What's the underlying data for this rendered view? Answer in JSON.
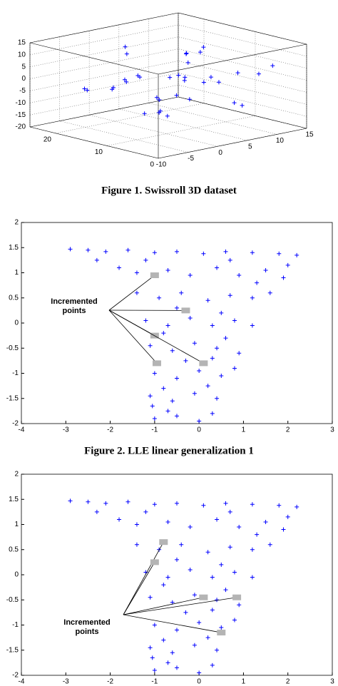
{
  "chart_data": [
    {
      "type": "scatter3d",
      "caption": "Figure 1. Swissroll 3D dataset",
      "color": "#0000ff",
      "xlim": [
        -10,
        15
      ],
      "xticks": [
        -10,
        -5,
        0,
        5,
        10,
        15
      ],
      "ylim": [
        0,
        25
      ],
      "yticks": [
        0,
        10,
        20
      ],
      "zlim": [
        -20,
        15
      ],
      "zticks": [
        -20,
        -15,
        -10,
        -5,
        0,
        5,
        10,
        15
      ],
      "grid": true,
      "x": [
        -8,
        -9,
        -7,
        -4,
        0,
        4,
        8,
        11,
        12,
        11,
        8,
        4,
        -1,
        -5,
        -6,
        -5,
        -2,
        2,
        6,
        8,
        8,
        5,
        1,
        -2,
        -3,
        -1,
        2,
        4,
        3,
        0,
        -9,
        -10,
        13,
        10,
        6
      ],
      "y": [
        5,
        15,
        10,
        3,
        18,
        8,
        12,
        2,
        20,
        14,
        6,
        16,
        10,
        4,
        19,
        12,
        7,
        20,
        3,
        15,
        9,
        1,
        13,
        18,
        2,
        14,
        5,
        11,
        19,
        8,
        1,
        9,
        7,
        18,
        13
      ],
      "z": [
        -5,
        0,
        6,
        10,
        12,
        13,
        11,
        7,
        2,
        -4,
        -9,
        -11,
        -10,
        -7,
        -3,
        3,
        6,
        7,
        6,
        3,
        -2,
        -6,
        -7,
        -4,
        0,
        2,
        3,
        1,
        -2,
        -3,
        -2,
        4,
        0,
        -7,
        9
      ]
    },
    {
      "type": "scatter",
      "caption": "Figure 2. LLE linear generalization 1",
      "color": "#0000ff",
      "xlim": [
        -4,
        3
      ],
      "xticks": [
        -4,
        -3,
        -2,
        -1,
        0,
        1,
        2,
        3
      ],
      "ylim": [
        -2,
        2
      ],
      "yticks": [
        -2,
        -1.5,
        -1,
        -0.5,
        0,
        0.5,
        1,
        1.5,
        2
      ],
      "x": [
        -2.9,
        -2.5,
        -2.1,
        -1.6,
        -1.0,
        -0.5,
        0.1,
        0.6,
        1.2,
        1.8,
        2.2,
        -1.8,
        -1.4,
        -0.7,
        -0.2,
        0.4,
        0.9,
        1.5,
        2.0,
        1.9,
        -1.4,
        -0.9,
        -0.4,
        0.2,
        0.7,
        1.2,
        1.6,
        -1.2,
        -0.7,
        -0.2,
        0.3,
        0.8,
        1.2,
        -1.1,
        -0.6,
        -0.1,
        0.4,
        0.9,
        -1.0,
        -0.5,
        0.0,
        0.5,
        0.8,
        -1.1,
        -0.6,
        -0.1,
        0.4,
        -1.0,
        -0.5,
        0.0,
        0.3,
        -2.3,
        -1.2,
        0.7,
        1.3,
        -0.5,
        0.5,
        -0.8,
        0.6,
        -0.3,
        0.3,
        -0.8,
        0.2,
        -0.7,
        -1.05
      ],
      "y": [
        1.47,
        1.45,
        1.42,
        1.45,
        1.4,
        1.42,
        1.38,
        1.42,
        1.4,
        1.38,
        1.35,
        1.1,
        1.0,
        1.05,
        0.95,
        1.1,
        0.95,
        1.05,
        1.15,
        0.9,
        0.6,
        0.5,
        0.6,
        0.45,
        0.55,
        0.5,
        0.6,
        0.05,
        -0.05,
        0.1,
        -0.05,
        0.05,
        -0.05,
        -0.45,
        -0.55,
        -0.4,
        -0.5,
        -0.6,
        -1.0,
        -1.1,
        -0.95,
        -1.05,
        -0.9,
        -1.45,
        -1.55,
        -1.4,
        -1.5,
        -1.9,
        -1.85,
        -1.95,
        -1.8,
        1.25,
        1.25,
        1.25,
        0.8,
        0.3,
        0.2,
        -0.2,
        -0.3,
        -0.75,
        -0.7,
        -1.3,
        -1.25,
        -1.75,
        -1.65
      ],
      "highlight": {
        "color": "#b4b4b4",
        "x": [
          -1.0,
          -0.3,
          -1.0,
          -0.95,
          0.1
        ],
        "y": [
          0.95,
          0.25,
          -0.25,
          -0.8,
          -0.8
        ]
      },
      "annotation": [
        "Incremented",
        "points"
      ]
    },
    {
      "type": "scatter",
      "color": "#0000ff",
      "xlim": [
        -4,
        3
      ],
      "xticks": [
        -4,
        -3,
        -2,
        -1,
        0,
        1,
        2,
        3
      ],
      "ylim": [
        -2,
        2
      ],
      "yticks": [
        -2,
        -1.5,
        -1,
        -0.5,
        0,
        0.5,
        1,
        1.5,
        2
      ],
      "x": [
        -2.9,
        -2.5,
        -2.1,
        -1.6,
        -1.0,
        -0.5,
        0.1,
        0.6,
        1.2,
        1.8,
        2.2,
        -1.8,
        -1.4,
        -0.7,
        -0.2,
        0.4,
        0.9,
        1.5,
        2.0,
        1.9,
        -1.4,
        -0.9,
        -0.4,
        0.2,
        0.7,
        1.2,
        1.6,
        -1.2,
        -0.7,
        -0.2,
        0.3,
        0.8,
        1.2,
        -1.1,
        -0.6,
        -0.1,
        0.4,
        0.9,
        -1.0,
        -0.5,
        0.0,
        0.5,
        0.8,
        -1.1,
        -0.6,
        -0.1,
        0.4,
        -1.0,
        -0.5,
        0.0,
        0.3,
        -2.3,
        -1.2,
        0.7,
        1.3,
        -0.5,
        0.5,
        -0.8,
        0.6,
        -0.3,
        0.3,
        -0.8,
        0.2,
        -0.7,
        -1.05
      ],
      "y": [
        1.47,
        1.45,
        1.42,
        1.45,
        1.4,
        1.42,
        1.38,
        1.42,
        1.4,
        1.38,
        1.35,
        1.1,
        1.0,
        1.05,
        0.95,
        1.1,
        0.95,
        1.05,
        1.15,
        0.9,
        0.6,
        0.5,
        0.6,
        0.45,
        0.55,
        0.5,
        0.6,
        0.05,
        -0.05,
        0.1,
        -0.05,
        0.05,
        -0.05,
        -0.45,
        -0.55,
        -0.4,
        -0.5,
        -0.6,
        -1.0,
        -1.1,
        -0.95,
        -1.05,
        -0.9,
        -1.45,
        -1.55,
        -1.4,
        -1.5,
        -1.9,
        -1.85,
        -1.95,
        -1.8,
        1.25,
        1.25,
        1.25,
        0.8,
        0.3,
        0.2,
        -0.2,
        -0.3,
        -0.75,
        -0.7,
        -1.3,
        -1.25,
        -1.75,
        -1.65
      ],
      "highlight": {
        "color": "#b4b4b4",
        "x": [
          -0.8,
          -1.0,
          0.1,
          0.85,
          0.5
        ],
        "y": [
          0.65,
          0.25,
          -0.45,
          -0.45,
          -1.15
        ]
      },
      "annotation": [
        "Incremented",
        "points"
      ]
    }
  ]
}
